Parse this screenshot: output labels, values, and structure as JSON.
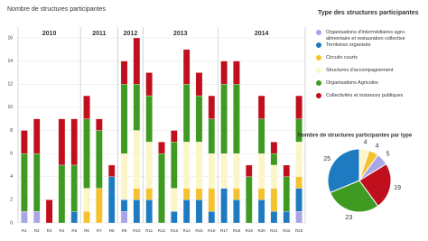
{
  "chart_data": [
    {
      "type": "stacked_bar",
      "title": "Nombre de structures participantes",
      "legend_title": "Type des structures participantes",
      "categories": [
        "R1",
        "R2",
        "R3",
        "R4",
        "R5",
        "R6",
        "R7",
        "R8",
        "R9",
        "R10",
        "R11",
        "R12",
        "R13",
        "R14",
        "R15",
        "R16",
        "R17",
        "R18",
        "R19",
        "R20",
        "R21",
        "R22",
        "R23"
      ],
      "groups": [
        {
          "name": "2010",
          "count": 5
        },
        {
          "name": "2011",
          "count": 3
        },
        {
          "name": "2012",
          "count": 2
        },
        {
          "name": "2013",
          "count": 6
        },
        {
          "name": "2014",
          "count": 7
        }
      ],
      "series": [
        {
          "name": "Organisations d'intermédiaires agro-alimentaire et restauration collective",
          "color": "#a9a6e8",
          "values": [
            1,
            1,
            0,
            0,
            0,
            0,
            0,
            0,
            1,
            0,
            0,
            0,
            0,
            0,
            0,
            0,
            0,
            0,
            0,
            0,
            0,
            0,
            1
          ]
        },
        {
          "name": "Territoires organisés",
          "color": "#1f7bc1",
          "values": [
            0,
            0,
            0,
            0,
            1,
            0,
            0,
            4,
            1,
            2,
            2,
            0,
            1,
            2,
            2,
            1,
            3,
            2,
            0,
            2,
            1,
            1,
            2
          ]
        },
        {
          "name": "Circuits courts",
          "color": "#f5c12e",
          "values": [
            0,
            0,
            0,
            0,
            0,
            1,
            3,
            0,
            0,
            1,
            1,
            0,
            0,
            1,
            1,
            2,
            0,
            1,
            0,
            1,
            2,
            0,
            1
          ]
        },
        {
          "name": "Structures d'accompagnement",
          "color": "#fbf5c8",
          "values": [
            0,
            0,
            0,
            0,
            0,
            2,
            0,
            0,
            4,
            5,
            4,
            0,
            2,
            4,
            4,
            3,
            3,
            3,
            0,
            3,
            2,
            0,
            3
          ]
        },
        {
          "name": "Organisations Agricoles",
          "color": "#3f9a22",
          "values": [
            5,
            5,
            0,
            5,
            4,
            6,
            5,
            0,
            6,
            4,
            4,
            6,
            4,
            5,
            4,
            3,
            6,
            6,
            4,
            3,
            1,
            3,
            2
          ]
        },
        {
          "name": "Collectivités et instances publiques",
          "color": "#c0101e",
          "values": [
            2,
            3,
            2,
            4,
            4,
            2,
            1,
            1,
            2,
            4,
            2,
            1,
            1,
            3,
            2,
            2,
            2,
            2,
            1,
            2,
            1,
            1,
            2
          ]
        }
      ],
      "ylim": [
        0,
        16
      ],
      "yticks": [
        0,
        2,
        4,
        6,
        8,
        10,
        12,
        14,
        16
      ],
      "grid": true
    },
    {
      "type": "pie",
      "title": "Nombre de structures participantes par type",
      "values": [
        4,
        4,
        5,
        19,
        23,
        25
      ],
      "colors": [
        "#fbf5c8",
        "#f5c12e",
        "#a9a6e8",
        "#c0101e",
        "#3f9a22",
        "#1f7bc1"
      ]
    }
  ]
}
